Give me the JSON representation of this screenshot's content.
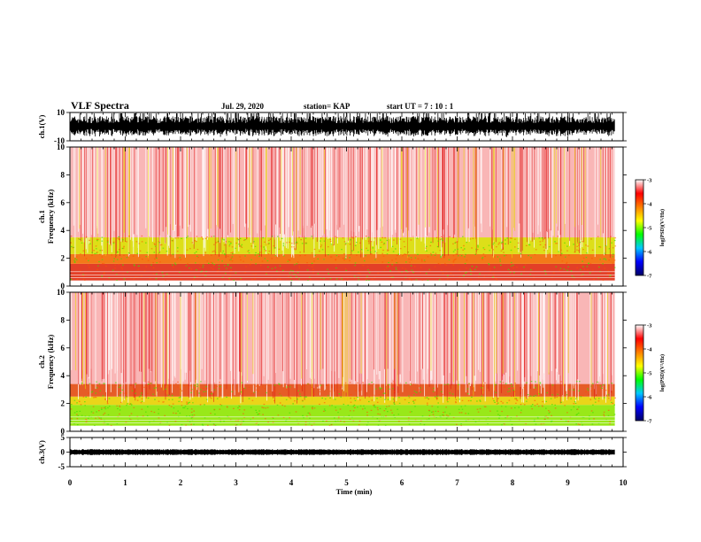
{
  "header": {
    "title": "VLF Spectra",
    "date": "Jul. 29, 2020",
    "station": "station= KAP",
    "start": "start UT =  7 : 10 : 1"
  },
  "chart_data": [
    {
      "type": "line",
      "id": "ch1-waveform",
      "ylabel": "ch.1(V)",
      "ylim": [
        -10,
        10
      ],
      "yticks": [
        "10",
        "-10"
      ],
      "xlim": [
        0,
        10
      ],
      "data_end_min": 9.85
    },
    {
      "type": "heatmap",
      "id": "ch1-spectrogram",
      "ylabel": "ch.1\nFrequency (kHz)",
      "ylim": [
        0,
        10
      ],
      "yticks": [
        "10",
        "8",
        "6",
        "4",
        "2",
        "0"
      ],
      "xlim": [
        0,
        10
      ],
      "bands": [
        {
          "f_min": 0.4,
          "f_max": 1.6,
          "level": -3.6,
          "color": "#e02a10"
        },
        {
          "f_min": 1.6,
          "f_max": 2.3,
          "level": -3.9,
          "color": "#f26a00"
        },
        {
          "f_min": 2.3,
          "f_max": 3.5,
          "level": -4.2,
          "color": "#d9dc00"
        },
        {
          "f_min": 3.5,
          "f_max": 10,
          "level": -3.3,
          "color": "#f47a7a"
        }
      ],
      "colorbar": {
        "label": "log(PSD)(V²/Hz)",
        "range": [
          -7,
          -3
        ],
        "ticks": [
          "-3",
          "-4",
          "-5",
          "-6",
          "-7"
        ]
      }
    },
    {
      "type": "heatmap",
      "id": "ch2-spectrogram",
      "ylabel": "ch.2\nFrequency (kHz)",
      "ylim": [
        0,
        10
      ],
      "yticks": [
        "10",
        "8",
        "6",
        "4",
        "2",
        "0"
      ],
      "xlim": [
        0,
        10
      ],
      "bands": [
        {
          "f_min": 0.4,
          "f_max": 1.9,
          "level": -4.6,
          "color": "#8ee600"
        },
        {
          "f_min": 1.9,
          "f_max": 2.5,
          "level": -4.0,
          "color": "#e8d000"
        },
        {
          "f_min": 2.5,
          "f_max": 3.4,
          "level": -3.8,
          "color": "#e34a10"
        },
        {
          "f_min": 3.4,
          "f_max": 10,
          "level": -3.3,
          "color": "#f47a7a"
        }
      ],
      "colorbar": {
        "label": "log(PSD)(V²/Hz)",
        "range": [
          -7,
          -3
        ],
        "ticks": [
          "-3",
          "-4",
          "-5",
          "-6",
          "-7"
        ]
      }
    },
    {
      "type": "line",
      "id": "ch3-waveform",
      "ylabel": "ch.3(V)",
      "ylim": [
        -5,
        5
      ],
      "yticks": [
        "5",
        "0",
        "-5"
      ],
      "level_V": 0,
      "xlim": [
        0,
        10
      ],
      "data_end_min": 9.85
    }
  ],
  "xaxis": {
    "label": "Time (min)",
    "ticks": [
      "0",
      "1",
      "2",
      "3",
      "4",
      "5",
      "6",
      "7",
      "8",
      "9",
      "10"
    ]
  },
  "colorscale": [
    "#000066",
    "#0000ff",
    "#00c8ff",
    "#00ff00",
    "#ffff00",
    "#ff8000",
    "#ff0000",
    "#ffffff"
  ]
}
